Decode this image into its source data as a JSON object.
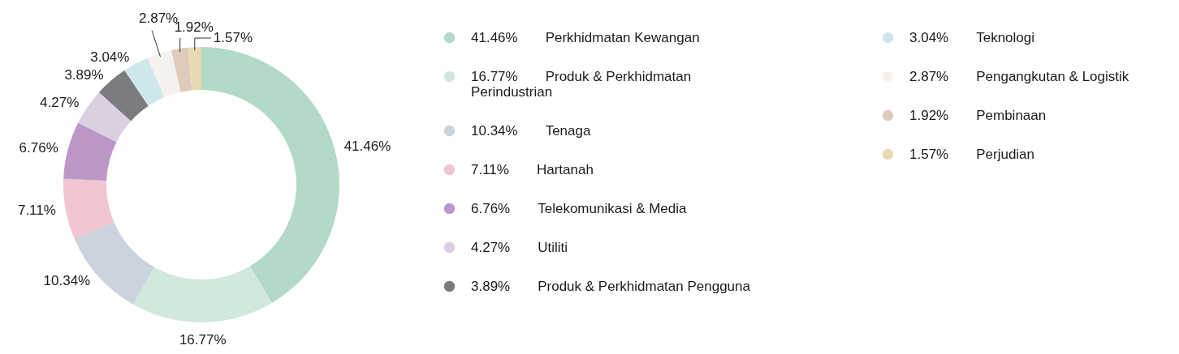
{
  "chart_data": {
    "type": "donut",
    "categories": [
      "Perkhidmatan Kewangan",
      "Produk & Perkhidmatan Perindustrian",
      "Tenaga",
      "Hartanah",
      "Telekomunikasi & Media",
      "Utiliti",
      "Produk & Perkhidmatan Pengguna",
      "Teknologi",
      "Pengangkutan & Logistik",
      "Pembinaan",
      "Perjudian"
    ],
    "values": [
      41.46,
      16.77,
      10.34,
      7.11,
      6.76,
      4.27,
      3.89,
      3.04,
      2.87,
      1.92,
      1.57
    ],
    "value_labels": [
      "41.46%",
      "16.77%",
      "10.34%",
      "7.11%",
      "6.76%",
      "4.27%",
      "3.89%",
      "3.04%",
      "2.87%",
      "1.92%",
      "1.57%"
    ],
    "colors": [
      "#b2dac6",
      "#d2e8dc",
      "#cbd3df",
      "#f1c6d0",
      "#bb98c8",
      "#dccfe2",
      "#7b7c80",
      "#cfe7ec",
      "#f5f1ef",
      "#e0cabc",
      "#e8dbb4"
    ],
    "legend": "right"
  }
}
